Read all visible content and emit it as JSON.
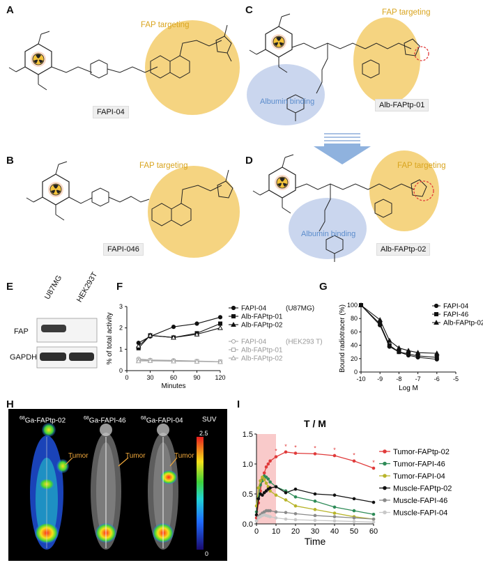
{
  "panels": {
    "A": {
      "label": "A",
      "compound": "FAPI-04",
      "targeting": "FAP targeting"
    },
    "B": {
      "label": "B",
      "compound": "FAPI-046",
      "targeting": "FAP targeting"
    },
    "C": {
      "label": "C",
      "compound": "Alb-FAPtp-01",
      "targeting": "FAP targeting",
      "albumin": "Albumin binding"
    },
    "D": {
      "label": "D",
      "compound": "Alb-FAPtp-02",
      "targeting": "FAP targeting",
      "albumin": "Albumin binding"
    },
    "E": {
      "label": "E",
      "lanes": [
        "U87MG",
        "HEK293T"
      ],
      "rows": [
        "FAP",
        "GAPDH"
      ]
    },
    "F": {
      "label": "F"
    },
    "G": {
      "label": "G"
    },
    "H": {
      "label": "H",
      "titles": [
        "FAPtp-02",
        "FAPI-46",
        "FAPI-04"
      ],
      "isotope": "68",
      "element": "Ga-",
      "tumor": "Tumor",
      "suv": "SUV",
      "suv_max": "2.5",
      "suv_min": "0"
    },
    "I": {
      "label": "I"
    }
  },
  "colors": {
    "fap_yellow": "#f3cd6b",
    "albumin_blue": "#c4d2ec",
    "red": "#e03a3a",
    "green": "#2e8b57",
    "olive": "#b8b42a",
    "grey": "#8a8a8a",
    "light": "#c8c8c8"
  },
  "chart_data": [
    {
      "id": "F",
      "type": "line",
      "title": "",
      "xlabel": "Minutes",
      "ylabel": "% of total activity",
      "xlim": [
        0,
        120
      ],
      "ylim": [
        0,
        3
      ],
      "xticks": [
        0,
        30,
        60,
        90,
        120
      ],
      "yticks": [
        0,
        1,
        2,
        3
      ],
      "x": [
        15,
        30,
        60,
        90,
        120
      ],
      "legend_groups": [
        "(U87MG)",
        "(HEK293 T)"
      ],
      "series": [
        {
          "name": "FAPI-04",
          "group": "(U87MG)",
          "marker": "circle",
          "color": "#111111",
          "values": [
            1.3,
            1.6,
            2.05,
            2.2,
            2.5
          ]
        },
        {
          "name": "Alb-FAPtp-01",
          "group": "(U87MG)",
          "marker": "square",
          "color": "#111111",
          "values": [
            1.05,
            1.65,
            1.55,
            1.75,
            2.2
          ]
        },
        {
          "name": "Alb-FAPtp-02",
          "group": "(U87MG)",
          "marker": "triangle",
          "color": "#111111",
          "values": [
            1.15,
            1.65,
            1.55,
            1.7,
            2.0
          ]
        },
        {
          "name": "FAPI-04",
          "group": "(HEK293 T)",
          "marker": "circle",
          "color": "#a8a8a8",
          "values": [
            0.55,
            0.5,
            0.48,
            0.45,
            0.42
          ]
        },
        {
          "name": "Alb-FAPtp-01",
          "group": "(HEK293 T)",
          "marker": "square",
          "color": "#a8a8a8",
          "values": [
            0.5,
            0.48,
            0.45,
            0.44,
            0.42
          ]
        },
        {
          "name": "Alb-FAPtp-02",
          "group": "(HEK293 T)",
          "marker": "triangle",
          "color": "#a8a8a8",
          "values": [
            0.45,
            0.46,
            0.44,
            0.43,
            0.41
          ]
        }
      ]
    },
    {
      "id": "G",
      "type": "line",
      "title": "",
      "xlabel": "Log M",
      "ylabel": "Bound radiotracer (%)",
      "xlim": [
        -10,
        -5
      ],
      "ylim": [
        0,
        100
      ],
      "xticks": [
        -10,
        -9,
        -8,
        -7,
        -6,
        -5
      ],
      "yticks": [
        0,
        20,
        40,
        60,
        80,
        100
      ],
      "x": [
        -10,
        -9,
        -8.5,
        -8,
        -7.5,
        -7,
        -6
      ],
      "series": [
        {
          "name": "FAPI-04",
          "marker": "circle",
          "values": [
            100,
            70,
            38,
            30,
            25,
            22,
            19
          ]
        },
        {
          "name": "FAPI-46",
          "marker": "square",
          "values": [
            100,
            72,
            40,
            30,
            27,
            24,
            22
          ]
        },
        {
          "name": "Alb-FAPtp-02",
          "marker": "triangle",
          "values": [
            100,
            78,
            47,
            36,
            32,
            29,
            28
          ]
        }
      ]
    },
    {
      "id": "I",
      "type": "line",
      "title": "T / M",
      "xlabel": "Time",
      "ylabel": "",
      "xlim": [
        0,
        60
      ],
      "ylim": [
        0,
        1.5
      ],
      "xticks": [
        0,
        10,
        20,
        30,
        40,
        50,
        60
      ],
      "yticks": [
        0.0,
        0.5,
        1.0,
        1.5
      ],
      "highlight": [
        0,
        10
      ],
      "x": [
        0,
        1,
        2,
        3,
        4,
        5,
        6,
        7,
        10,
        15,
        20,
        30,
        40,
        50,
        60
      ],
      "series": [
        {
          "name": "Tumor-FAPtp-02",
          "color": "#e03a3a",
          "values": [
            0.1,
            0.35,
            0.55,
            0.75,
            0.85,
            0.95,
            1.0,
            1.05,
            1.12,
            1.2,
            1.18,
            1.17,
            1.14,
            1.05,
            0.93
          ]
        },
        {
          "name": "Tumor-FAPI-46",
          "color": "#2e8b57",
          "values": [
            0.2,
            0.45,
            0.65,
            0.72,
            0.8,
            0.78,
            0.75,
            0.7,
            0.62,
            0.55,
            0.45,
            0.38,
            0.28,
            0.22,
            0.16
          ]
        },
        {
          "name": "Tumor-FAPI-04",
          "color": "#b8b42a",
          "values": [
            0.3,
            0.6,
            0.72,
            0.78,
            0.74,
            0.68,
            0.62,
            0.55,
            0.48,
            0.4,
            0.3,
            0.24,
            0.18,
            0.12,
            0.08
          ]
        },
        {
          "name": "Muscle-FAPtp-02",
          "color": "#111111",
          "values": [
            0.15,
            0.42,
            0.5,
            0.48,
            0.52,
            0.55,
            0.58,
            0.6,
            0.62,
            0.52,
            0.58,
            0.5,
            0.48,
            0.42,
            0.36
          ]
        },
        {
          "name": "Muscle-FAPI-46",
          "color": "#8a8a8a",
          "values": [
            0.05,
            0.12,
            0.15,
            0.18,
            0.2,
            0.22,
            0.22,
            0.22,
            0.2,
            0.19,
            0.17,
            0.14,
            0.12,
            0.1,
            0.08
          ]
        },
        {
          "name": "Muscle-FAPI-04",
          "color": "#c8c8c8",
          "values": [
            0.05,
            0.1,
            0.12,
            0.14,
            0.15,
            0.14,
            0.13,
            0.12,
            0.1,
            0.08,
            0.07,
            0.06,
            0.05,
            0.04,
            0.03
          ]
        }
      ]
    }
  ]
}
